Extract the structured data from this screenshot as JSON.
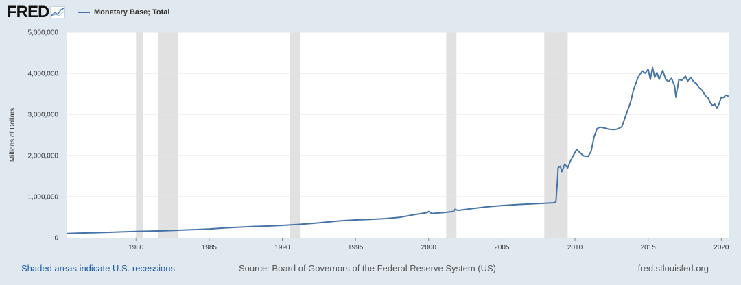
{
  "header": {
    "logo_text": "FRED",
    "logo_icon": "line-chart-icon"
  },
  "colors": {
    "series": "#4572a7",
    "recession": "#e1e1e1",
    "background": "#e1e9f0",
    "link": "#1f5ba6"
  },
  "footer": {
    "recessions_link": "Shaded areas indicate U.S. recessions",
    "source": "Source: Board of Governors of the Federal Reserve System (US)",
    "site": "fred.stlouisfed.org"
  },
  "chart_data": {
    "type": "line",
    "title": "",
    "xlabel": "",
    "ylabel": "Millions of Dollars",
    "xlim": [
      1975.3,
      2020.5
    ],
    "ylim": [
      0,
      5000000
    ],
    "x_ticks": [
      1980,
      1985,
      1990,
      1995,
      2000,
      2005,
      2010,
      2015,
      2020
    ],
    "x_tick_labels": [
      "1980",
      "1985",
      "1990",
      "1995",
      "2000",
      "2005",
      "2010",
      "2015",
      "2020"
    ],
    "y_ticks": [
      0,
      1000000,
      2000000,
      3000000,
      4000000,
      5000000
    ],
    "y_tick_labels": [
      "0",
      "1,000,000",
      "2,000,000",
      "3,000,000",
      "4,000,000",
      "5,000,000"
    ],
    "grid": true,
    "legend_position": "top-left",
    "recessions": [
      [
        1980.0,
        1980.5
      ],
      [
        1981.5,
        1982.9
      ],
      [
        1990.5,
        1991.2
      ],
      [
        2001.2,
        2001.9
      ],
      [
        2007.9,
        2009.5
      ]
    ],
    "series": [
      {
        "name": "Monetary Base; Total",
        "points": [
          [
            1975.3,
            105000
          ],
          [
            1976,
            112000
          ],
          [
            1977,
            121000
          ],
          [
            1978,
            132000
          ],
          [
            1979,
            143000
          ],
          [
            1980,
            154000
          ],
          [
            1981,
            163000
          ],
          [
            1982,
            172000
          ],
          [
            1983,
            185000
          ],
          [
            1984,
            198000
          ],
          [
            1985,
            214000
          ],
          [
            1986,
            236000
          ],
          [
            1987,
            256000
          ],
          [
            1988,
            274000
          ],
          [
            1989,
            284000
          ],
          [
            1990,
            300000
          ],
          [
            1991,
            321000
          ],
          [
            1992,
            345000
          ],
          [
            1993,
            380000
          ],
          [
            1994,
            414000
          ],
          [
            1995,
            434000
          ],
          [
            1996,
            445000
          ],
          [
            1997,
            465000
          ],
          [
            1998,
            495000
          ],
          [
            1999,
            560000
          ],
          [
            1999.9,
            610000
          ],
          [
            2000.0,
            640000
          ],
          [
            2000.2,
            590000
          ],
          [
            2001,
            610000
          ],
          [
            2001.7,
            640000
          ],
          [
            2001.8,
            690000
          ],
          [
            2002,
            665000
          ],
          [
            2003,
            710000
          ],
          [
            2004,
            752000
          ],
          [
            2005,
            782000
          ],
          [
            2006,
            805000
          ],
          [
            2007,
            822000
          ],
          [
            2008,
            840000
          ],
          [
            2008.6,
            850000
          ],
          [
            2008.7,
            880000
          ],
          [
            2008.8,
            1400000
          ],
          [
            2008.85,
            1700000
          ],
          [
            2009.0,
            1740000
          ],
          [
            2009.1,
            1610000
          ],
          [
            2009.3,
            1790000
          ],
          [
            2009.5,
            1700000
          ],
          [
            2009.7,
            1880000
          ],
          [
            2009.9,
            2010000
          ],
          [
            2010.0,
            2070000
          ],
          [
            2010.1,
            2150000
          ],
          [
            2010.3,
            2080000
          ],
          [
            2010.6,
            1990000
          ],
          [
            2010.9,
            1980000
          ],
          [
            2011.1,
            2100000
          ],
          [
            2011.3,
            2450000
          ],
          [
            2011.5,
            2650000
          ],
          [
            2011.7,
            2690000
          ],
          [
            2012.0,
            2670000
          ],
          [
            2012.3,
            2640000
          ],
          [
            2012.6,
            2630000
          ],
          [
            2012.9,
            2640000
          ],
          [
            2013.2,
            2700000
          ],
          [
            2013.5,
            3000000
          ],
          [
            2013.8,
            3300000
          ],
          [
            2014.0,
            3600000
          ],
          [
            2014.3,
            3900000
          ],
          [
            2014.6,
            4060000
          ],
          [
            2014.8,
            4000000
          ],
          [
            2015.0,
            4100000
          ],
          [
            2015.15,
            3850000
          ],
          [
            2015.3,
            4140000
          ],
          [
            2015.45,
            3900000
          ],
          [
            2015.6,
            4020000
          ],
          [
            2015.75,
            3850000
          ],
          [
            2016.0,
            4070000
          ],
          [
            2016.2,
            3850000
          ],
          [
            2016.4,
            3800000
          ],
          [
            2016.6,
            3880000
          ],
          [
            2016.8,
            3700000
          ],
          [
            2016.9,
            3420000
          ],
          [
            2017.1,
            3850000
          ],
          [
            2017.3,
            3830000
          ],
          [
            2017.55,
            3930000
          ],
          [
            2017.7,
            3810000
          ],
          [
            2017.9,
            3900000
          ],
          [
            2018.1,
            3800000
          ],
          [
            2018.3,
            3750000
          ],
          [
            2018.5,
            3640000
          ],
          [
            2018.7,
            3580000
          ],
          [
            2018.9,
            3460000
          ],
          [
            2019.1,
            3400000
          ],
          [
            2019.25,
            3280000
          ],
          [
            2019.4,
            3220000
          ],
          [
            2019.55,
            3250000
          ],
          [
            2019.7,
            3150000
          ],
          [
            2019.85,
            3260000
          ],
          [
            2020.0,
            3420000
          ],
          [
            2020.15,
            3410000
          ],
          [
            2020.3,
            3470000
          ],
          [
            2020.5,
            3440000
          ]
        ]
      }
    ]
  }
}
